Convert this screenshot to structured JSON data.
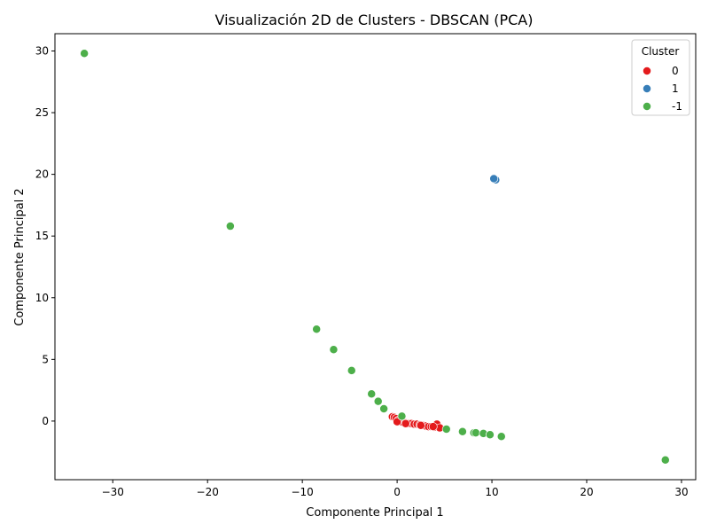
{
  "chart_data": {
    "type": "scatter",
    "title": "Visualización 2D de Clusters - DBSCAN (PCA)",
    "xlabel": "Componente Principal 1",
    "ylabel": "Componente Principal 2",
    "xlim": [
      -36.1,
      31.5
    ],
    "ylim": [
      -4.75,
      31.4
    ],
    "xticks": [
      -30,
      -20,
      -10,
      0,
      10,
      20,
      30
    ],
    "yticks": [
      0,
      5,
      10,
      15,
      20,
      25,
      30
    ],
    "grid": false,
    "legend": {
      "title": "Cluster",
      "placement": "top-right",
      "entries": [
        {
          "label": "0",
          "color": "#e41a1c"
        },
        {
          "label": "1",
          "color": "#377eb8"
        },
        {
          "label": "-1",
          "color": "#4daf4a"
        }
      ]
    },
    "series": [
      {
        "name": "0",
        "color": "#e41a1c",
        "points": [
          [
            -0.5,
            0.35
          ],
          [
            -0.3,
            0.3
          ],
          [
            -0.1,
            0.2
          ],
          [
            0.1,
            0.05
          ],
          [
            0.3,
            -0.05
          ],
          [
            0.6,
            -0.1
          ],
          [
            0.9,
            -0.15
          ],
          [
            1.2,
            -0.2
          ],
          [
            1.5,
            -0.2
          ],
          [
            1.8,
            -0.25
          ],
          [
            2.1,
            -0.25
          ],
          [
            2.4,
            -0.3
          ],
          [
            2.7,
            -0.35
          ],
          [
            3.0,
            -0.4
          ],
          [
            3.3,
            -0.45
          ],
          [
            3.6,
            -0.45
          ],
          [
            3.9,
            -0.5
          ],
          [
            4.2,
            -0.25
          ],
          [
            4.5,
            -0.55
          ],
          [
            0.0,
            -0.05
          ],
          [
            0.9,
            -0.2
          ],
          [
            2.5,
            -0.35
          ],
          [
            3.8,
            -0.45
          ]
        ]
      },
      {
        "name": "1",
        "color": "#377eb8",
        "points": [
          [
            10.3,
            19.6
          ],
          [
            10.4,
            19.55
          ],
          [
            10.2,
            19.65
          ]
        ]
      },
      {
        "name": "-1",
        "color": "#4daf4a",
        "points": [
          [
            -33.0,
            29.8
          ],
          [
            -17.6,
            15.8
          ],
          [
            -8.5,
            7.45
          ],
          [
            -6.7,
            5.8
          ],
          [
            -4.8,
            4.1
          ],
          [
            -2.7,
            2.2
          ],
          [
            -2.0,
            1.6
          ],
          [
            -1.4,
            1.0
          ],
          [
            0.5,
            0.4
          ],
          [
            5.2,
            -0.65
          ],
          [
            6.9,
            -0.85
          ],
          [
            8.1,
            -0.95
          ],
          [
            8.3,
            -0.95
          ],
          [
            9.1,
            -1.0
          ],
          [
            9.8,
            -1.1
          ],
          [
            11.0,
            -1.25
          ],
          [
            28.3,
            -3.15
          ]
        ]
      }
    ]
  }
}
